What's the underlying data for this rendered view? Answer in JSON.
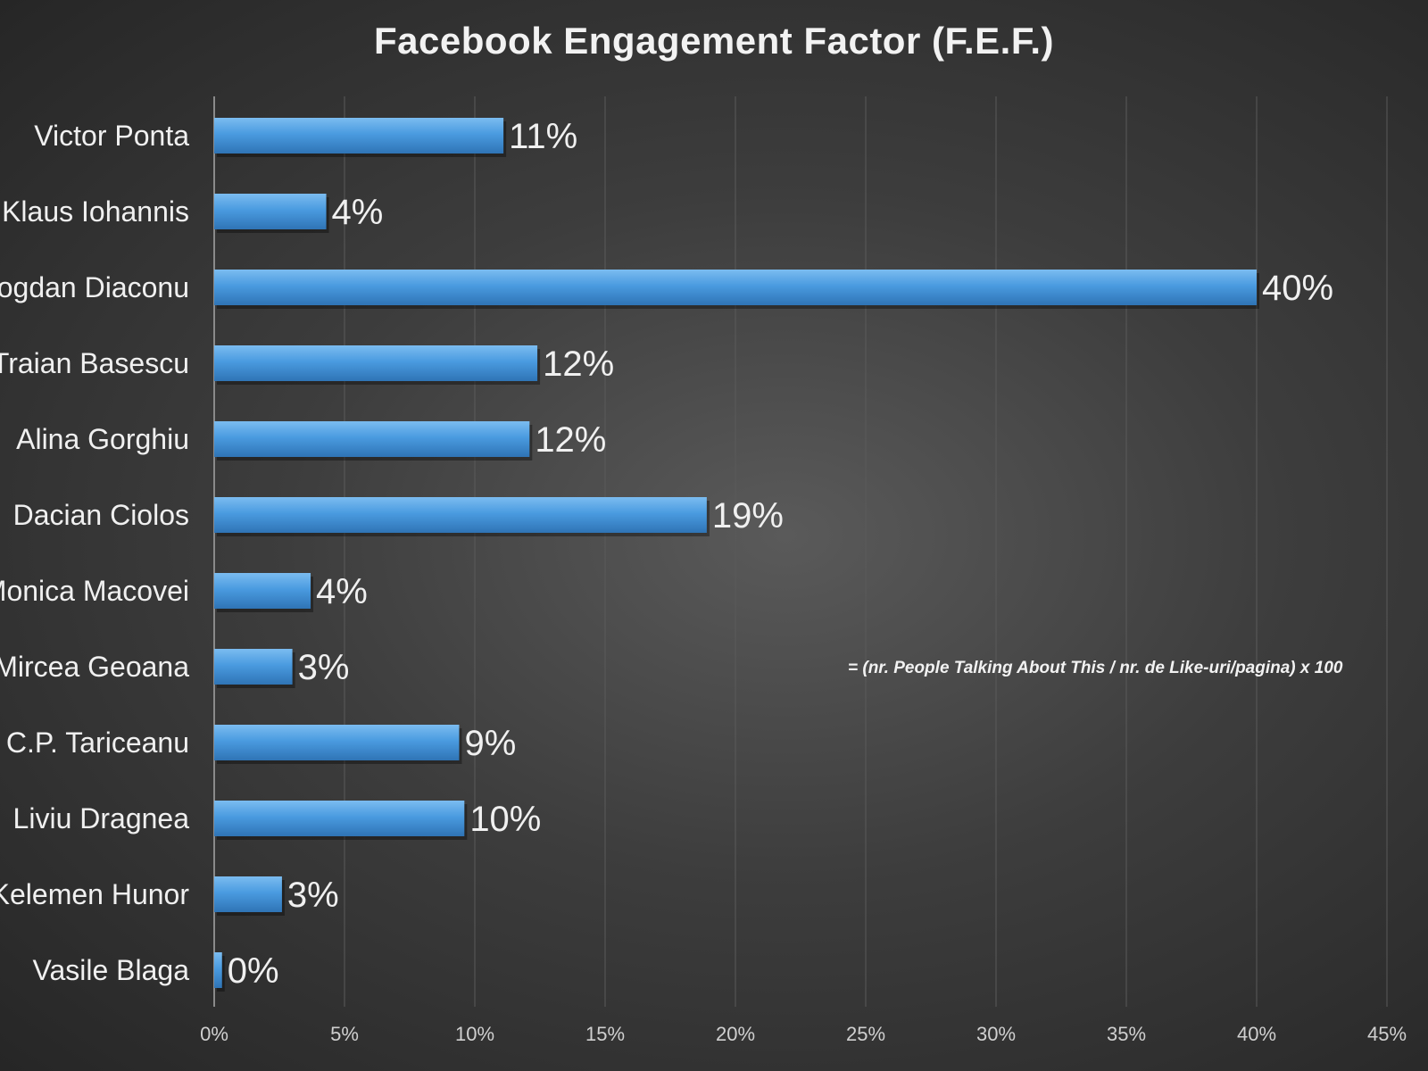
{
  "chart_data": {
    "type": "bar",
    "orientation": "horizontal",
    "title": "Facebook Engagement Factor (F.E.F.)",
    "categories": [
      "Victor Ponta",
      "Klaus Iohannis",
      "Bogdan Diaconu",
      "Traian Basescu",
      "Alina Gorghiu",
      "Dacian Ciolos",
      "Monica Macovei",
      "Mircea Geoana",
      "C.P. Tariceanu",
      "Liviu Dragnea",
      "Kelemen Hunor",
      "Vasile Blaga"
    ],
    "values": [
      11.1,
      4.3,
      40,
      12.4,
      12.1,
      18.9,
      3.7,
      3.0,
      9.4,
      9.6,
      2.6,
      0.3
    ],
    "data_labels": [
      "11%",
      "4%",
      "40%",
      "12%",
      "12%",
      "19%",
      "4%",
      "3%",
      "9%",
      "10%",
      "3%",
      "0%"
    ],
    "x_ticks": [
      "0%",
      "5%",
      "10%",
      "15%",
      "20%",
      "25%",
      "30%",
      "35%",
      "40%",
      "45%"
    ],
    "xlim": [
      0,
      45
    ],
    "xlabel": "",
    "ylabel": "",
    "grid": true,
    "legend": "none",
    "note": "= (nr. People Talking About This / nr. de Like-uri/pagina) x 100",
    "colors": {
      "bar": "#4a9be0",
      "bar_highlight": "#7bbcf0",
      "bar_shadow": "#2f74b5",
      "grid": "#5a5a5a"
    }
  }
}
